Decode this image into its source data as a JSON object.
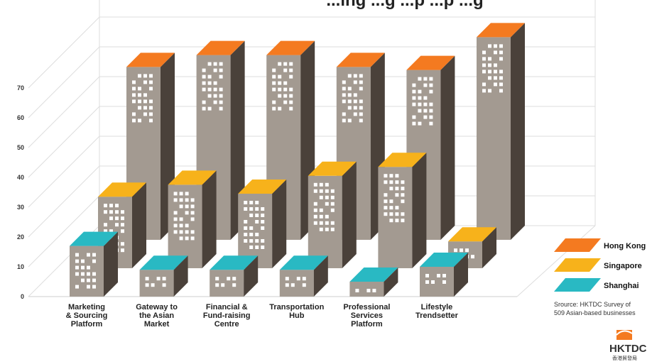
{
  "chart_data": {
    "type": "bar",
    "title": "...ing ...g ...p ...p ...g",
    "categories": [
      "Marketing & Sourcing Platform",
      "Gateway to the Asian Market",
      "Financial & Fund-raising Centre",
      "Transportation Hub",
      "Professional Services Platform",
      "Lifestyle Trendsetter"
    ],
    "category_lines": [
      [
        "Marketing",
        "& Sourcing",
        "Platform"
      ],
      [
        "Gateway to",
        "the Asian",
        "Market"
      ],
      [
        "Financial &",
        "Fund-raising",
        "Centre"
      ],
      [
        "Transportation",
        "Hub"
      ],
      [
        "Professional",
        "Services",
        "Platform"
      ],
      [
        "Lifestyle",
        "Trendsetter"
      ]
    ],
    "series": [
      {
        "name": "Hong Kong",
        "color": "#f47a20",
        "values": [
          58,
          62,
          62,
          58,
          57,
          68
        ]
      },
      {
        "name": "Singapore",
        "color": "#f7b21b",
        "values": [
          24,
          28,
          25,
          31,
          34,
          9
        ]
      },
      {
        "name": "Shanghai",
        "color": "#29b9c3",
        "values": [
          17,
          9,
          9,
          9,
          5,
          10
        ]
      }
    ],
    "yticks": [
      0,
      10,
      20,
      30,
      40,
      50,
      60,
      70
    ],
    "ylim": [
      0,
      75
    ],
    "grid": true,
    "legend_position": "right",
    "source": [
      "Srource: HKTDC Survey of",
      "509 Asian-based businesses"
    ],
    "logo": {
      "text": "HKTDC",
      "subtext": "香港貿發局"
    }
  }
}
